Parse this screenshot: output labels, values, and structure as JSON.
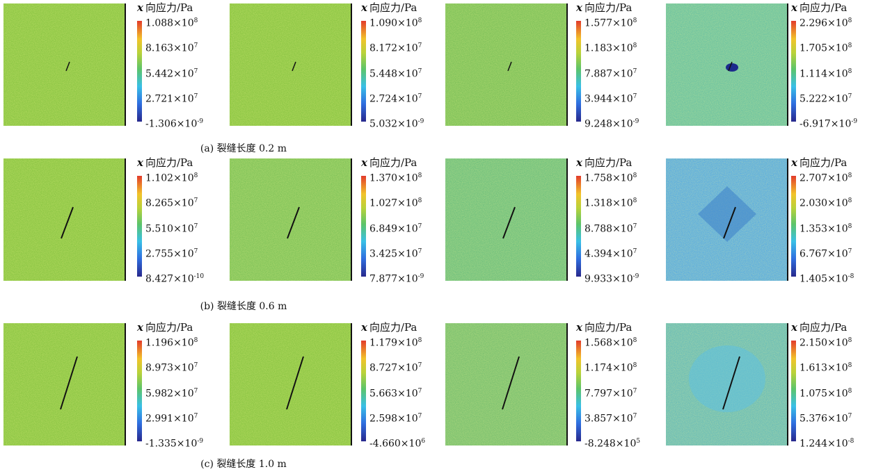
{
  "rows": [
    {
      "caption": "(a) 裂缝长度 0.2 m",
      "panels": [
        {
          "legend_title": {
            "var": "x",
            "unit": "向应力/Pa"
          },
          "ticks": [
            {
              "base": "1.088×10",
              "exp": "8"
            },
            {
              "base": "8.163×10",
              "exp": "7"
            },
            {
              "base": "5.442×10",
              "exp": "7"
            },
            {
              "base": "2.721×10",
              "exp": "7"
            },
            {
              "base": "-1.306×10",
              "exp": "-9"
            }
          ]
        },
        {
          "legend_title": {
            "var": "x",
            "unit": "向应力/Pa"
          },
          "ticks": [
            {
              "base": "1.090×10",
              "exp": "8"
            },
            {
              "base": "8.172×10",
              "exp": "7"
            },
            {
              "base": "5.448×10",
              "exp": "7"
            },
            {
              "base": "2.724×10",
              "exp": "7"
            },
            {
              "base": "5.032×10",
              "exp": "-9"
            }
          ]
        },
        {
          "legend_title": {
            "var": "x",
            "unit": "向应力/Pa"
          },
          "ticks": [
            {
              "base": "1.577×10",
              "exp": "8"
            },
            {
              "base": "1.183×10",
              "exp": "8"
            },
            {
              "base": "7.887×10",
              "exp": "7"
            },
            {
              "base": "3.944×10",
              "exp": "7"
            },
            {
              "base": "9.248×10",
              "exp": "-9"
            }
          ]
        },
        {
          "legend_title": {
            "var": "x",
            "unit": "向应力/Pa"
          },
          "ticks": [
            {
              "base": "2.296×10",
              "exp": "8"
            },
            {
              "base": "1.705×10",
              "exp": "8"
            },
            {
              "base": "1.114×10",
              "exp": "8"
            },
            {
              "base": "5.222×10",
              "exp": "7"
            },
            {
              "base": "-6.917×10",
              "exp": "-9"
            }
          ]
        }
      ]
    },
    {
      "caption": "(b) 裂缝长度 0.6 m",
      "panels": [
        {
          "legend_title": {
            "var": "x",
            "unit": "向应力/Pa"
          },
          "ticks": [
            {
              "base": "1.102×10",
              "exp": "8"
            },
            {
              "base": "8.265×10",
              "exp": "7"
            },
            {
              "base": "5.510×10",
              "exp": "7"
            },
            {
              "base": "2.755×10",
              "exp": "7"
            },
            {
              "base": "8.427×10",
              "exp": "-10"
            }
          ]
        },
        {
          "legend_title": {
            "var": "x",
            "unit": "向应力/Pa"
          },
          "ticks": [
            {
              "base": "1.370×10",
              "exp": "8"
            },
            {
              "base": "1.027×10",
              "exp": "8"
            },
            {
              "base": "6.849×10",
              "exp": "7"
            },
            {
              "base": "3.425×10",
              "exp": "7"
            },
            {
              "base": "7.877×10",
              "exp": "-9"
            }
          ]
        },
        {
          "legend_title": {
            "var": "x",
            "unit": "向应力/Pa"
          },
          "ticks": [
            {
              "base": "1.758×10",
              "exp": "8"
            },
            {
              "base": "1.318×10",
              "exp": "8"
            },
            {
              "base": "8.788×10",
              "exp": "7"
            },
            {
              "base": "4.394×10",
              "exp": "7"
            },
            {
              "base": "9.933×10",
              "exp": "-9"
            }
          ]
        },
        {
          "legend_title": {
            "var": "x",
            "unit": "向应力/Pa"
          },
          "ticks": [
            {
              "base": "2.707×10",
              "exp": "8"
            },
            {
              "base": "2.030×10",
              "exp": "8"
            },
            {
              "base": "1.353×10",
              "exp": "8"
            },
            {
              "base": "6.767×10",
              "exp": "7"
            },
            {
              "base": "1.405×10",
              "exp": "-8"
            }
          ]
        }
      ]
    },
    {
      "caption": "(c) 裂缝长度 1.0 m",
      "panels": [
        {
          "legend_title": {
            "var": "x",
            "unit": "向应力/Pa"
          },
          "ticks": [
            {
              "base": "1.196×10",
              "exp": "8"
            },
            {
              "base": "8.973×10",
              "exp": "7"
            },
            {
              "base": "5.982×10",
              "exp": "7"
            },
            {
              "base": "2.991×10",
              "exp": "7"
            },
            {
              "base": "-1.335×10",
              "exp": "-9"
            }
          ]
        },
        {
          "legend_title": {
            "var": "x",
            "unit": "向应力/Pa"
          },
          "ticks": [
            {
              "base": "1.179×10",
              "exp": "8"
            },
            {
              "base": "8.727×10",
              "exp": "7"
            },
            {
              "base": "5.663×10",
              "exp": "7"
            },
            {
              "base": "2.598×10",
              "exp": "7"
            },
            {
              "base": "-4.660×10",
              "exp": "6"
            }
          ]
        },
        {
          "legend_title": {
            "var": "x",
            "unit": "向应力/Pa"
          },
          "ticks": [
            {
              "base": "1.568×10",
              "exp": "8"
            },
            {
              "base": "1.174×10",
              "exp": "8"
            },
            {
              "base": "7.797×10",
              "exp": "7"
            },
            {
              "base": "3.857×10",
              "exp": "7"
            },
            {
              "base": "-8.248×10",
              "exp": "5"
            }
          ]
        },
        {
          "legend_title": {
            "var": "x",
            "unit": "向应力/Pa"
          },
          "ticks": [
            {
              "base": "2.150×10",
              "exp": "8"
            },
            {
              "base": "1.613×10",
              "exp": "8"
            },
            {
              "base": "1.075×10",
              "exp": "8"
            },
            {
              "base": "5.376×10",
              "exp": "7"
            },
            {
              "base": "1.244×10",
              "exp": "-8"
            }
          ]
        }
      ]
    }
  ]
}
